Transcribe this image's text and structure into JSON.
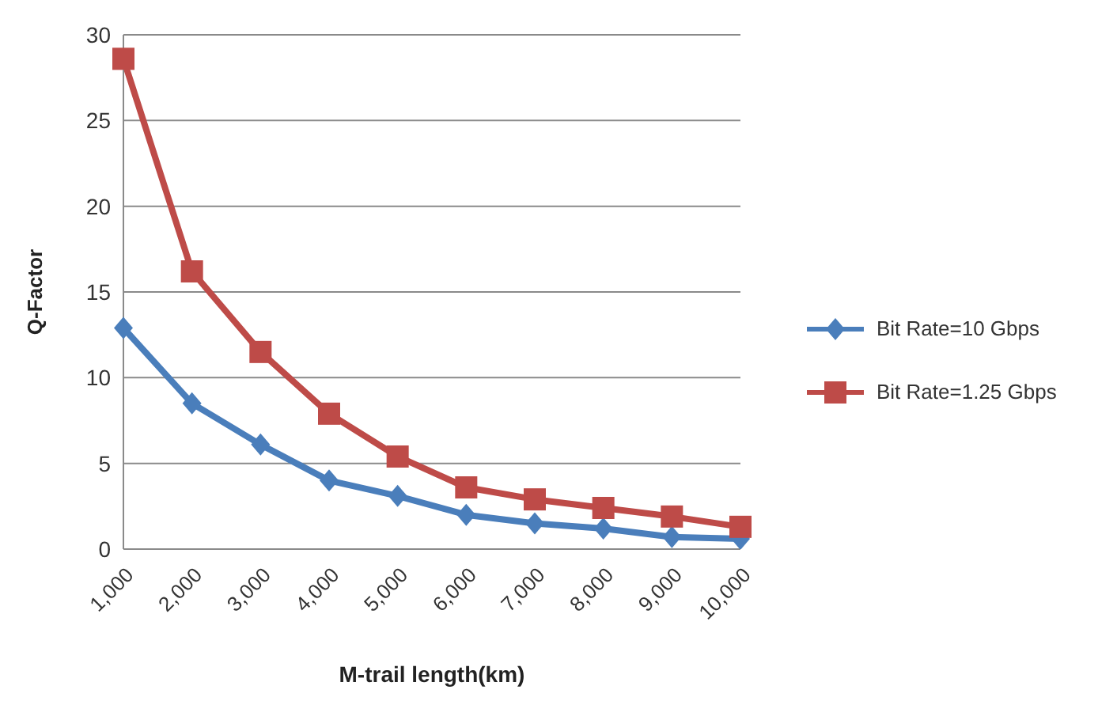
{
  "chart_data": {
    "type": "line",
    "xlabel": "M-trail length(km)",
    "ylabel": "Q-Factor",
    "categories": [
      "1,000",
      "2,000",
      "3,000",
      "4,000",
      "5,000",
      "6,000",
      "7,000",
      "8,000",
      "9,000",
      "10,000"
    ],
    "series": [
      {
        "name": "Bit Rate=10 Gbps",
        "color": "#4a7ebb",
        "marker": "diamond",
        "values": [
          12.9,
          8.5,
          6.1,
          4.0,
          3.1,
          2.0,
          1.5,
          1.2,
          0.7,
          0.6
        ]
      },
      {
        "name": "Bit Rate=1.25 Gbps",
        "color": "#be4b48",
        "marker": "square",
        "values": [
          28.6,
          16.2,
          11.5,
          7.9,
          5.4,
          3.6,
          2.9,
          2.4,
          1.9,
          1.3
        ]
      }
    ],
    "ylim": [
      0,
      30
    ],
    "yticks": [
      0,
      5,
      10,
      15,
      20,
      25,
      30
    ],
    "grid": "y",
    "legend": "right",
    "line_style": "solid"
  }
}
